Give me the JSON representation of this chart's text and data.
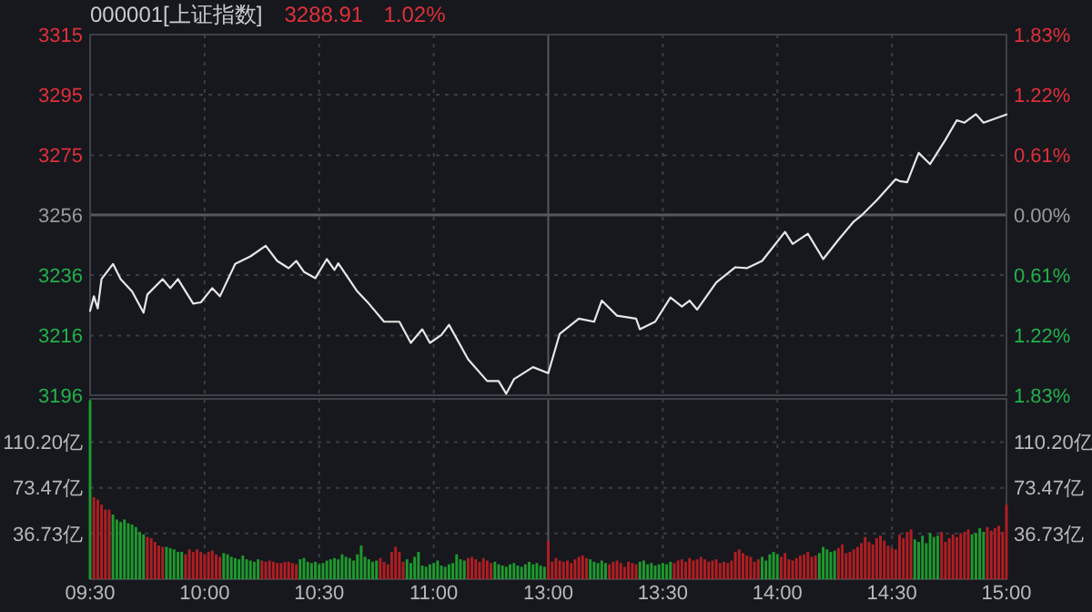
{
  "chart_data": [
    {
      "type": "line",
      "title": "000001[上证指数]",
      "annotations": [
        "3288.91",
        "1.02%"
      ],
      "categories": [
        null,
        null,
        null,
        null,
        null,
        null,
        null,
        null,
        null,
        null,
        null,
        null,
        null,
        null,
        null,
        null,
        null,
        null,
        null,
        null,
        null,
        null,
        null,
        null,
        null,
        null,
        null,
        null,
        null,
        null,
        null,
        null,
        null,
        null,
        null,
        null,
        null,
        null,
        null,
        null,
        null,
        null,
        null,
        null,
        null,
        null,
        null,
        null,
        null,
        null,
        null,
        null,
        null,
        null,
        null,
        null,
        null,
        null,
        null,
        null,
        null,
        null,
        null,
        null,
        null,
        null,
        null,
        null,
        null,
        null,
        null,
        null,
        null,
        null,
        null,
        null,
        null,
        null,
        null,
        null,
        null,
        null,
        null,
        null,
        null,
        null,
        null,
        null,
        null,
        null,
        null,
        null,
        null,
        null,
        null,
        null,
        null,
        null,
        null,
        null,
        null,
        null,
        null,
        null,
        null,
        null,
        null,
        null,
        null,
        null,
        null,
        null,
        null,
        null,
        null,
        null,
        null,
        null,
        null,
        null,
        null,
        null,
        null,
        null,
        null,
        null,
        null,
        null,
        null,
        null,
        null,
        null,
        null,
        null,
        null,
        null,
        null,
        null,
        null,
        null,
        null,
        null,
        null,
        null,
        null,
        null,
        null,
        null,
        null,
        null,
        null,
        null,
        null,
        null,
        null,
        null,
        null,
        null,
        null,
        null,
        null,
        null,
        null,
        null,
        null,
        null,
        null,
        null,
        null,
        null,
        null,
        null,
        null,
        null,
        null,
        null,
        null,
        null,
        null,
        null,
        null,
        null,
        null,
        null,
        null,
        null,
        null,
        null,
        null,
        null,
        null,
        null,
        null,
        null,
        null,
        null,
        null,
        null,
        null,
        null,
        null,
        null,
        null,
        null,
        null,
        null,
        null,
        null,
        null,
        null,
        null,
        null,
        null,
        null,
        null,
        null,
        null,
        null,
        null,
        null,
        null,
        null,
        null,
        null,
        null,
        null,
        null,
        null,
        null,
        null,
        null,
        null,
        null,
        null,
        null,
        null,
        null,
        null,
        null,
        null,
        null
      ],
      "ylim": [
        3196.1,
        3315.3
      ],
      "yticks": [
        {
          "value": 3196.1,
          "label": "3196"
        },
        {
          "value": 3215.8,
          "label": "3216"
        },
        {
          "value": 3235.8,
          "label": "3236"
        },
        {
          "value": 3255.7,
          "label": "3256"
        },
        {
          "value": 3275.4,
          "label": "3275"
        },
        {
          "value": 3295.4,
          "label": "3295"
        },
        {
          "value": 3315.3,
          "label": "3315"
        }
      ],
      "y2lim": [
        -1.83,
        1.83
      ],
      "y2ticks": [
        {
          "value": -1.83,
          "label": "1.83%"
        },
        {
          "value": -1.22,
          "label": "1.22%"
        },
        {
          "value": -0.61,
          "label": "0.61%"
        },
        {
          "value": 0,
          "label": "0.00%"
        },
        {
          "value": 0.61,
          "label": "0.61%"
        },
        {
          "value": 1.22,
          "label": "1.22%"
        },
        {
          "value": 1.83,
          "label": "1.83%"
        }
      ],
      "grid": true,
      "series": [
        {
          "color": "#e6e6e6",
          "values": [
            3224.0,
            3228.8,
            3224.8,
            3234.5,
            null,
            null,
            3239.5,
            null,
            3234.5,
            null,
            null,
            3230.4,
            null,
            null,
            3223.4,
            3229.4,
            null,
            null,
            null,
            3234.5,
            null,
            3231.5,
            null,
            3234.5,
            null,
            null,
            null,
            3226.4,
            null,
            3226.8,
            null,
            null,
            3231.5,
            null,
            3228.8,
            null,
            null,
            null,
            3239.5,
            null,
            null,
            null,
            3242.0,
            null,
            null,
            null,
            3245.5,
            null,
            null,
            3240.5,
            null,
            null,
            3238.1,
            null,
            3240.5,
            null,
            3236.9,
            null,
            null,
            3234.8,
            null,
            null,
            3241.1,
            null,
            3237.5,
            3239.7,
            null,
            null,
            null,
            null,
            3230.4,
            null,
            null,
            3226.4,
            null,
            null,
            null,
            3220.4,
            null,
            null,
            null,
            3220.4,
            null,
            null,
            3213.4,
            null,
            null,
            3217.9,
            null,
            3213.4,
            null,
            null,
            3216.0,
            null,
            3219.4,
            null,
            null,
            null,
            null,
            3208.0,
            null,
            null,
            null,
            null,
            3200.8,
            null,
            null,
            3200.8,
            null,
            3196.6,
            null,
            3201.4,
            null,
            null,
            null,
            null,
            3205.4,
            null,
            null,
            null,
            3203.4,
            null,
            null,
            3216.4,
            null,
            null,
            null,
            null,
            3221.4,
            null,
            null,
            null,
            3220.4,
            null,
            3227.4,
            null,
            null,
            null,
            3222.4,
            null,
            null,
            null,
            null,
            3221.4,
            3217.9,
            null,
            null,
            null,
            3220.4,
            null,
            null,
            null,
            3228.4,
            null,
            null,
            3225.4,
            null,
            3227.4,
            null,
            3224.4,
            null,
            null,
            null,
            null,
            3233.4,
            null,
            null,
            null,
            null,
            3238.4,
            null,
            null,
            3238.1,
            null,
            null,
            null,
            3240.5,
            null,
            null,
            null,
            null,
            null,
            3250.1,
            null,
            3246.1,
            null,
            null,
            null,
            3249.5,
            null,
            null,
            null,
            3241.1,
            null,
            null,
            null,
            3247.5,
            null,
            null,
            null,
            3253.5,
            null,
            3255.5,
            null,
            null,
            null,
            3260.5,
            null,
            null,
            null,
            null,
            3267.5,
            3266.9,
            null,
            3266.5,
            null,
            null,
            3276.2,
            null,
            null,
            3272.5,
            null,
            null,
            null,
            3280.5,
            null,
            null,
            3287.0,
            null,
            3286.2,
            null,
            null,
            3289.0,
            null,
            3286.2,
            null,
            null,
            null,
            null,
            null,
            3288.9
          ]
        }
      ]
    },
    {
      "type": "bar",
      "categories": [
        "09:30",
        null,
        null,
        null,
        null,
        null,
        null,
        null,
        null,
        null,
        null,
        null,
        null,
        null,
        null,
        null,
        null,
        null,
        null,
        null,
        null,
        null,
        null,
        null,
        null,
        null,
        null,
        null,
        null,
        null,
        "10:00",
        null,
        null,
        null,
        null,
        null,
        null,
        null,
        null,
        null,
        null,
        null,
        null,
        null,
        null,
        null,
        null,
        null,
        null,
        null,
        null,
        null,
        null,
        null,
        null,
        null,
        null,
        null,
        null,
        null,
        "10:30",
        null,
        null,
        null,
        null,
        null,
        null,
        null,
        null,
        null,
        null,
        null,
        null,
        null,
        null,
        null,
        null,
        null,
        null,
        null,
        null,
        null,
        null,
        null,
        null,
        null,
        null,
        null,
        null,
        null,
        "11:00",
        null,
        null,
        null,
        null,
        null,
        null,
        null,
        null,
        null,
        null,
        null,
        null,
        null,
        null,
        null,
        null,
        null,
        null,
        null,
        null,
        null,
        null,
        null,
        null,
        null,
        null,
        null,
        null,
        null,
        "13:00",
        null,
        null,
        null,
        null,
        null,
        null,
        null,
        null,
        null,
        null,
        null,
        null,
        null,
        null,
        null,
        null,
        null,
        null,
        null,
        null,
        null,
        null,
        null,
        null,
        null,
        null,
        null,
        null,
        null,
        "13:30",
        null,
        null,
        null,
        null,
        null,
        null,
        null,
        null,
        null,
        null,
        null,
        null,
        null,
        null,
        null,
        null,
        null,
        null,
        null,
        null,
        null,
        null,
        null,
        null,
        null,
        null,
        null,
        null,
        null,
        "14:00",
        null,
        null,
        null,
        null,
        null,
        null,
        null,
        null,
        null,
        null,
        null,
        null,
        null,
        null,
        null,
        null,
        null,
        null,
        null,
        null,
        null,
        null,
        null,
        null,
        null,
        null,
        null,
        null,
        null,
        "14:30",
        null,
        null,
        null,
        null,
        null,
        null,
        null,
        null,
        null,
        null,
        null,
        null,
        null,
        null,
        null,
        null,
        null,
        null,
        null,
        null,
        null,
        null,
        null,
        null,
        null,
        null,
        null,
        null,
        null,
        "15:00"
      ],
      "ylim": [
        0,
        145
      ],
      "yticks": [
        {
          "value": 36.73,
          "label": "36.73亿"
        },
        {
          "value": 73.47,
          "label": "73.47亿"
        },
        {
          "value": 110.2,
          "label": "110.20亿"
        }
      ],
      "y2lim": [
        0,
        145
      ],
      "y2ticks": [
        {
          "value": 36.73,
          "label": "36.73亿"
        },
        {
          "value": 73.47,
          "label": "73.47亿"
        },
        {
          "value": 110.2,
          "label": "110.20亿"
        }
      ],
      "grid": true,
      "series": [
        {
          "values": [
            144,
            66,
            64,
            60,
            56,
            56,
            52,
            48,
            46,
            48,
            45,
            44,
            42,
            38,
            36,
            34,
            33,
            30,
            27,
            26,
            26,
            25,
            24,
            22,
            22,
            20,
            24,
            22,
            24,
            22,
            20,
            22,
            23,
            20,
            18,
            21,
            20,
            18,
            17,
            16,
            19,
            16,
            15,
            14,
            16,
            15,
            14,
            15,
            14,
            13,
            13,
            14,
            14,
            13,
            12,
            16,
            17,
            14,
            13,
            14,
            12,
            13,
            15,
            16,
            17,
            16,
            20,
            18,
            17,
            15,
            20,
            27,
            18,
            16,
            14,
            15,
            17,
            14,
            12,
            22,
            26,
            22,
            14,
            16,
            13,
            18,
            22,
            11,
            10,
            12,
            13,
            15,
            11,
            10,
            12,
            13,
            20,
            16,
            15,
            17,
            18,
            16,
            14,
            17,
            15,
            13,
            14,
            12,
            11,
            10,
            12,
            13,
            11,
            10,
            12,
            14,
            12,
            13,
            11,
            10,
            31,
            14,
            17,
            15,
            14,
            15,
            13,
            16,
            18,
            19,
            17,
            16,
            14,
            13,
            15,
            13,
            12,
            14,
            15,
            13,
            10,
            14,
            13,
            12,
            14,
            15,
            12,
            13,
            11,
            12,
            13,
            12,
            14,
            13,
            15,
            16,
            14,
            17,
            15,
            16,
            18,
            16,
            14,
            15,
            16,
            13,
            14,
            13,
            15,
            22,
            24,
            21,
            19,
            18,
            14,
            16,
            18,
            15,
            20,
            22,
            20,
            18,
            21,
            16,
            15,
            17,
            19,
            20,
            22,
            18,
            19,
            21,
            26,
            24,
            22,
            23,
            25,
            28,
            21,
            22,
            24,
            26,
            29,
            34,
            30,
            28,
            33,
            35,
            31,
            27,
            25,
            24,
            36,
            33,
            38,
            40,
            32,
            30,
            35,
            29,
            37,
            34,
            35,
            38,
            30,
            33,
            36,
            34,
            37,
            38,
            40,
            36,
            37,
            41,
            38,
            42,
            39,
            41,
            43,
            38,
            60
          ],
          "colors": [
            "#1e9a2e",
            "#b01e23",
            "#b01e23",
            "#b01e23",
            "#b01e23",
            "#b01e23",
            "#1e9a2e",
            "#1e9a2e",
            "#1e9a2e",
            "#1e9a2e",
            "#1e9a2e",
            "#1e9a2e",
            "#1e9a2e",
            "#1e9a2e",
            "#1e9a2e",
            "#b01e23",
            "#b01e23",
            "#b01e23",
            "#b01e23",
            "#b01e23",
            "#1e9a2e",
            "#1e9a2e",
            "#1e9a2e",
            "#1e9a2e",
            "#1e9a2e",
            "#b01e23",
            "#b01e23",
            "#b01e23",
            "#b01e23",
            "#b01e23",
            "#b01e23",
            "#b01e23",
            "#b01e23",
            "#b01e23",
            "#b01e23",
            "#1e9a2e",
            "#1e9a2e",
            "#1e9a2e",
            "#1e9a2e",
            "#1e9a2e",
            "#1e9a2e",
            "#1e9a2e",
            "#1e9a2e",
            "#1e9a2e",
            "#1e9a2e",
            "#b01e23",
            "#b01e23",
            "#b01e23",
            "#b01e23",
            "#b01e23",
            "#b01e23",
            "#b01e23",
            "#b01e23",
            "#b01e23",
            "#b01e23",
            "#1e9a2e",
            "#1e9a2e",
            "#1e9a2e",
            "#1e9a2e",
            "#1e9a2e",
            "#1e9a2e",
            "#1e9a2e",
            "#1e9a2e",
            "#1e9a2e",
            "#1e9a2e",
            "#1e9a2e",
            "#1e9a2e",
            "#1e9a2e",
            "#1e9a2e",
            "#1e9a2e",
            "#1e9a2e",
            "#1e9a2e",
            "#1e9a2e",
            "#1e9a2e",
            "#1e9a2e",
            "#1e9a2e",
            "#b01e23",
            "#b01e23",
            "#b01e23",
            "#b01e23",
            "#b01e23",
            "#b01e23",
            "#b01e23",
            "#1e9a2e",
            "#1e9a2e",
            "#1e9a2e",
            "#1e9a2e",
            "#1e9a2e",
            "#1e9a2e",
            "#1e9a2e",
            "#1e9a2e",
            "#1e9a2e",
            "#1e9a2e",
            "#1e9a2e",
            "#1e9a2e",
            "#1e9a2e",
            "#1e9a2e",
            "#1e9a2e",
            "#1e9a2e",
            "#b01e23",
            "#b01e23",
            "#b01e23",
            "#b01e23",
            "#b01e23",
            "#b01e23",
            "#b01e23",
            "#1e9a2e",
            "#1e9a2e",
            "#1e9a2e",
            "#1e9a2e",
            "#1e9a2e",
            "#1e9a2e",
            "#1e9a2e",
            "#1e9a2e",
            "#1e9a2e",
            "#1e9a2e",
            "#1e9a2e",
            "#1e9a2e",
            "#1e9a2e",
            "#1e9a2e",
            "#b01e23",
            "#b01e23",
            "#b01e23",
            "#b01e23",
            "#b01e23",
            "#b01e23",
            "#b01e23",
            "#b01e23",
            "#b01e23",
            "#b01e23",
            "#b01e23",
            "#1e9a2e",
            "#1e9a2e",
            "#1e9a2e",
            "#1e9a2e",
            "#1e9a2e",
            "#b01e23",
            "#b01e23",
            "#b01e23",
            "#b01e23",
            "#b01e23",
            "#b01e23",
            "#b01e23",
            "#b01e23",
            "#1e9a2e",
            "#1e9a2e",
            "#1e9a2e",
            "#1e9a2e",
            "#1e9a2e",
            "#1e9a2e",
            "#1e9a2e",
            "#1e9a2e",
            "#1e9a2e",
            "#b01e23",
            "#b01e23",
            "#b01e23",
            "#b01e23",
            "#b01e23",
            "#b01e23",
            "#b01e23",
            "#b01e23",
            "#b01e23",
            "#b01e23",
            "#b01e23",
            "#b01e23",
            "#b01e23",
            "#b01e23",
            "#b01e23",
            "#b01e23",
            "#b01e23",
            "#b01e23",
            "#b01e23",
            "#b01e23",
            "#b01e23",
            "#b01e23",
            "#b01e23",
            "#1e9a2e",
            "#1e9a2e",
            "#1e9a2e",
            "#1e9a2e",
            "#1e9a2e",
            "#b01e23",
            "#b01e23",
            "#b01e23",
            "#b01e23",
            "#b01e23",
            "#b01e23",
            "#b01e23",
            "#b01e23",
            "#b01e23",
            "#b01e23",
            "#1e9a2e",
            "#1e9a2e",
            "#1e9a2e",
            "#1e9a2e",
            "#1e9a2e",
            "#b01e23",
            "#b01e23",
            "#b01e23",
            "#b01e23",
            "#b01e23",
            "#b01e23",
            "#b01e23",
            "#b01e23",
            "#b01e23",
            "#b01e23",
            "#b01e23",
            "#b01e23",
            "#b01e23",
            "#b01e23",
            "#b01e23",
            "#b01e23",
            "#b01e23",
            "#b01e23",
            "#b01e23",
            "#b01e23",
            "#1e9a2e",
            "#1e9a2e",
            "#1e9a2e",
            "#1e9a2e",
            "#1e9a2e",
            "#1e9a2e",
            "#1e9a2e",
            "#b01e23",
            "#b01e23",
            "#b01e23",
            "#b01e23",
            "#b01e23",
            "#b01e23",
            "#b01e23",
            "#b01e23",
            "#1e9a2e",
            "#1e9a2e",
            "#1e9a2e",
            "#1e9a2e",
            "#b01e23",
            "#b01e23",
            "#b01e23",
            "#b01e23",
            "#b01e23",
            "#b01e23"
          ]
        }
      ]
    }
  ]
}
